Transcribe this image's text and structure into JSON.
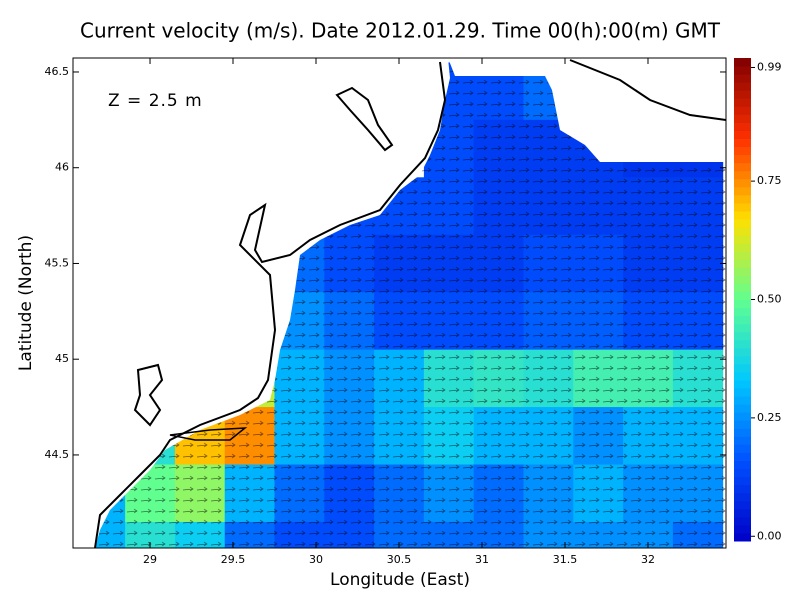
{
  "chart_data": {
    "type": "heatmap",
    "title": "Current velocity (m/s). Date 2012.01.29. Time 00(h):00(m) GMT",
    "annotation": "Z = 2.5 m",
    "x_label": "Longitude (East)",
    "y_label": "Latitude (North)",
    "xlim": [
      28.536,
      32.47
    ],
    "ylim": [
      44.014,
      46.573
    ],
    "xticks": [
      29,
      29.5,
      30,
      30.5,
      31,
      31.5,
      32
    ],
    "yticks": [
      44.5,
      45,
      45.5,
      46,
      46.5
    ],
    "clim": [
      -0.01,
      1.01
    ],
    "cticks": [
      {
        "value": 0,
        "label": "0.00"
      },
      {
        "value": 0.25,
        "label": "0.25"
      },
      {
        "value": 0.5,
        "label": "0.50"
      },
      {
        "value": 0.75,
        "label": "0.75"
      },
      {
        "value": 0.99,
        "label": "0.99"
      }
    ],
    "colormap": [
      "#0000c8",
      "#0050ff",
      "#00c8ff",
      "#60ff90",
      "#ffe000",
      "#ff3000",
      "#800000"
    ],
    "lon_edges": [
      28.55,
      28.85,
      29.15,
      29.45,
      29.75,
      30.05,
      30.35,
      30.65,
      30.95,
      31.25,
      31.55,
      31.85,
      32.15,
      32.45
    ],
    "lat_edges": [
      46.55,
      46.25,
      45.95,
      45.65,
      45.35,
      45.05,
      44.75,
      44.45,
      44.15,
      44.01
    ],
    "values": [
      [
        null,
        null,
        null,
        null,
        null,
        null,
        null,
        0.15,
        0.15,
        0.2,
        null,
        null,
        null
      ],
      [
        null,
        null,
        null,
        null,
        null,
        null,
        null,
        0.15,
        0.12,
        0.12,
        0.12,
        0.1,
        0.1
      ],
      [
        null,
        null,
        null,
        null,
        null,
        0.15,
        0.15,
        0.15,
        0.12,
        0.12,
        0.12,
        0.12,
        0.12
      ],
      [
        null,
        null,
        null,
        null,
        0.2,
        0.15,
        0.12,
        0.12,
        0.12,
        0.15,
        0.15,
        0.12,
        0.12
      ],
      [
        null,
        null,
        null,
        null,
        0.25,
        0.2,
        0.15,
        0.15,
        0.15,
        0.18,
        0.18,
        0.15,
        0.15
      ],
      [
        null,
        null,
        null,
        0.6,
        0.3,
        0.25,
        0.3,
        0.4,
        0.42,
        0.4,
        0.45,
        0.45,
        0.4
      ],
      [
        null,
        0.4,
        0.7,
        0.75,
        0.3,
        0.25,
        0.3,
        0.35,
        0.3,
        0.3,
        0.25,
        0.3,
        0.3
      ],
      [
        0.3,
        0.5,
        0.55,
        0.3,
        0.2,
        0.15,
        0.2,
        0.25,
        0.2,
        0.25,
        0.3,
        0.25,
        0.25
      ],
      [
        0.3,
        0.4,
        0.35,
        0.2,
        0.15,
        0.15,
        0.2,
        0.2,
        0.2,
        0.25,
        0.25,
        0.25,
        0.2
      ]
    ]
  }
}
